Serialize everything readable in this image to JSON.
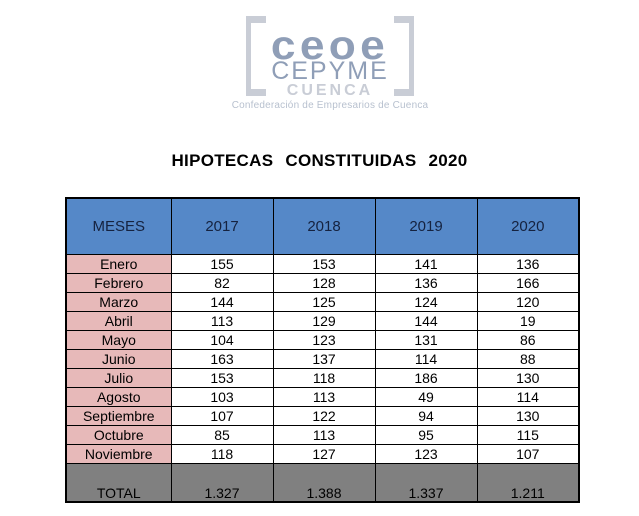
{
  "logo": {
    "line1": "ceoe",
    "line2": "CEPYME",
    "line3": "CUENCA",
    "tagline": "Confederación de Empresarios de Cuenca"
  },
  "title": "HIPOTECAS CONSTITUIDAS 2020",
  "table": {
    "columns": [
      "MESES",
      "2017",
      "2018",
      "2019",
      "2020"
    ],
    "rows": [
      {
        "month": "Enero",
        "values": [
          "155",
          "153",
          "141",
          "136"
        ]
      },
      {
        "month": "Febrero",
        "values": [
          "82",
          "128",
          "136",
          "166"
        ]
      },
      {
        "month": "Marzo",
        "values": [
          "144",
          "125",
          "124",
          "120"
        ]
      },
      {
        "month": "Abril",
        "values": [
          "113",
          "129",
          "144",
          "19"
        ]
      },
      {
        "month": "Mayo",
        "values": [
          "104",
          "123",
          "131",
          "86"
        ]
      },
      {
        "month": "Junio",
        "values": [
          "163",
          "137",
          "114",
          "88"
        ]
      },
      {
        "month": "Julio",
        "values": [
          "153",
          "118",
          "186",
          "130"
        ]
      },
      {
        "month": "Agosto",
        "values": [
          "103",
          "113",
          "49",
          "114"
        ]
      },
      {
        "month": "Septiembre",
        "values": [
          "107",
          "122",
          "94",
          "130"
        ]
      },
      {
        "month": "Octubre",
        "values": [
          "85",
          "113",
          "95",
          "115"
        ]
      },
      {
        "month": "Noviembre",
        "values": [
          "118",
          "127",
          "123",
          "107"
        ]
      }
    ],
    "total": {
      "label": "TOTAL",
      "values": [
        "1.327",
        "1.388",
        "1.337",
        "1.211"
      ]
    }
  },
  "colors": {
    "header_bg": "#5588c8",
    "month_bg": "#e7b9b9",
    "total_bg": "#808080",
    "logo_dark": "#8f9eb7",
    "logo_light": "#c9cdd6",
    "logo_tagline": "#b8c1cf"
  }
}
